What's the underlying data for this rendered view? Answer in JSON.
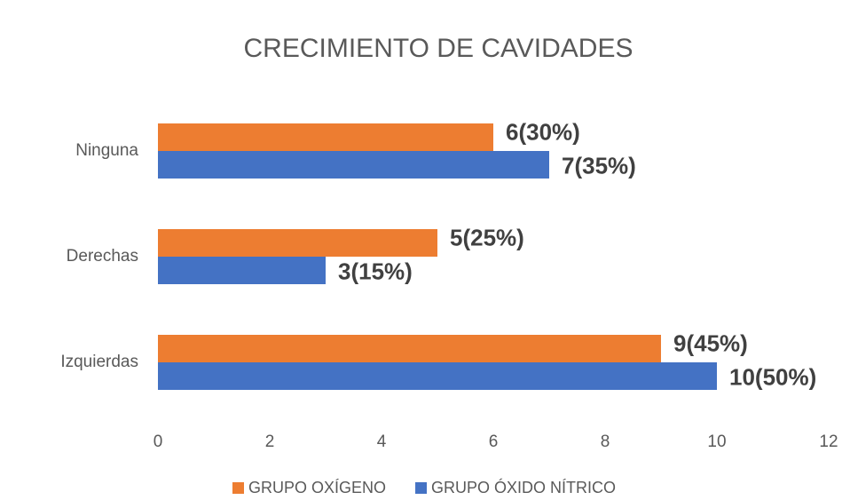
{
  "chart_data": {
    "type": "bar",
    "orientation": "horizontal",
    "title": "CRECIMIENTO DE CAVIDADES",
    "categories": [
      "Ninguna",
      "Derechas",
      "Izquierdas"
    ],
    "series": [
      {
        "name": "GRUPO OXÍGENO",
        "color": "#ed7d31",
        "values": [
          6,
          5,
          9
        ],
        "value_labels": [
          "6(30%)",
          "5(25%)",
          "9(45%)"
        ]
      },
      {
        "name": "GRUPO ÓXIDO NÍTRICO",
        "color": "#4472c4",
        "values": [
          7,
          3,
          10
        ],
        "value_labels": [
          "7(35%)",
          "3(15%)",
          "10(50%)"
        ]
      }
    ],
    "xlim": [
      0,
      12
    ],
    "xticks": [
      0,
      2,
      4,
      6,
      8,
      10,
      12
    ],
    "grid": false,
    "legend": "bottom"
  }
}
